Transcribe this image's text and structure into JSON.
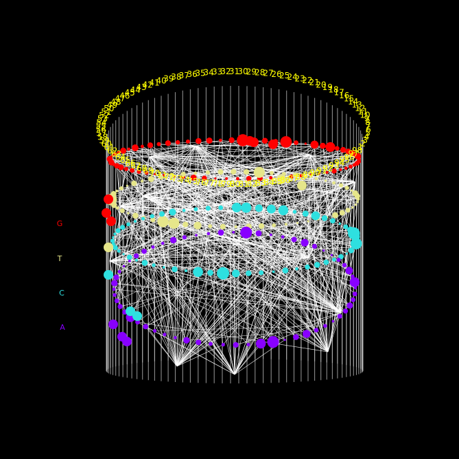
{
  "colors": {
    "background": "#000000",
    "G": "#ff0000",
    "T": "#e6e68a",
    "C": "#2ee0e0",
    "A": "#8800ff",
    "number_labels": "#ffff00",
    "edges": "#ffffff",
    "pillars": "#bbbbbb"
  },
  "legend": [
    {
      "key": "G",
      "label": "G"
    },
    {
      "key": "T",
      "label": "T"
    },
    {
      "key": "C",
      "label": "C"
    },
    {
      "key": "A",
      "label": "A"
    }
  ],
  "number_labels": [
    "1",
    "2",
    "3",
    "4",
    "5",
    "6",
    "7",
    "8",
    "9",
    "10",
    "11",
    "12",
    "13",
    "14",
    "15",
    "16",
    "17",
    "18",
    "19",
    "20",
    "21",
    "22",
    "23",
    "24",
    "25",
    "26",
    "27",
    "28",
    "29",
    "30",
    "31",
    "32",
    "33",
    "34",
    "35",
    "36",
    "37",
    "38",
    "39",
    "40",
    "41",
    "42",
    "43",
    "44",
    "45",
    "46",
    "47",
    "48",
    "49",
    "50",
    "51",
    "52",
    "53",
    "54",
    "55",
    "56",
    "57",
    "58",
    "59",
    "60",
    "61",
    "62",
    "63",
    "64",
    "65",
    "66",
    "67",
    "68",
    "69",
    "70",
    "71",
    "72",
    "73",
    "74",
    "75",
    "76",
    "77",
    "78",
    "79",
    "80",
    "81",
    "82",
    "83",
    "84",
    "85",
    "86",
    "87",
    "88",
    "89",
    "90",
    "91",
    "92",
    "93",
    "94",
    "95",
    "96",
    "97",
    "98"
  ]
}
